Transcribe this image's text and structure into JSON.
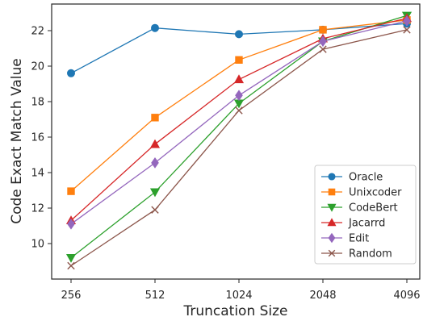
{
  "chart_data": {
    "type": "line",
    "title": "",
    "xlabel": "Truncation Size",
    "ylabel": "Code Exact Match Value",
    "categories": [
      "256",
      "512",
      "1024",
      "2048",
      "4096"
    ],
    "ylim": [
      8.0,
      23.5
    ],
    "yticks": [
      10,
      12,
      14,
      16,
      18,
      20,
      22
    ],
    "grid": false,
    "legend_position": "lower-right",
    "series": [
      {
        "name": "Oracle",
        "color": "#1f77b4",
        "marker": "circle",
        "values": [
          19.6,
          22.15,
          21.8,
          22.05,
          22.4
        ]
      },
      {
        "name": "Unixcoder",
        "color": "#ff7f0e",
        "marker": "square",
        "values": [
          12.95,
          17.1,
          20.35,
          22.05,
          22.6
        ]
      },
      {
        "name": "CodeBert",
        "color": "#2ca02c",
        "marker": "triangle-down",
        "values": [
          9.2,
          12.9,
          17.9,
          21.4,
          22.85
        ]
      },
      {
        "name": "Jacarrd",
        "color": "#d62728",
        "marker": "triangle-up",
        "values": [
          11.3,
          15.6,
          19.25,
          21.55,
          22.7
        ]
      },
      {
        "name": "Edit",
        "color": "#9467bd",
        "marker": "diamond",
        "values": [
          11.1,
          14.55,
          18.35,
          21.4,
          22.55
        ]
      },
      {
        "name": "Random",
        "color": "#8c564b",
        "marker": "x",
        "values": [
          8.75,
          11.9,
          17.5,
          20.95,
          22.05
        ]
      }
    ]
  }
}
